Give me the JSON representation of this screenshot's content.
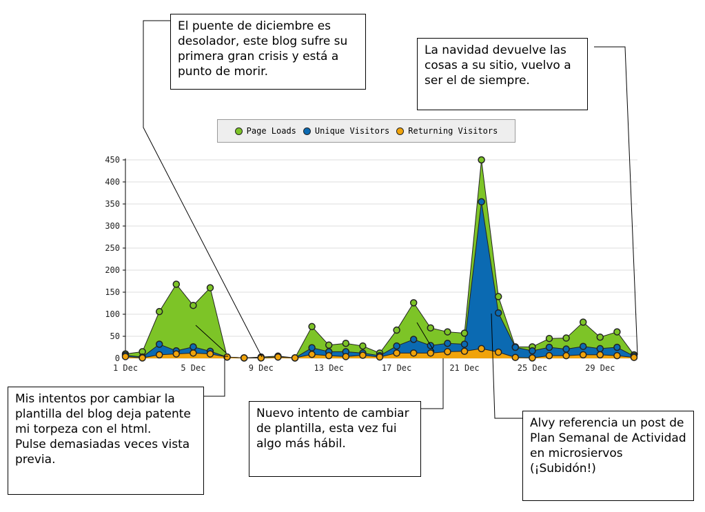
{
  "chart_data": {
    "type": "area",
    "x": [
      "1 Dec",
      "2 Dec",
      "3 Dec",
      "4 Dec",
      "5 Dec",
      "6 Dec",
      "7 Dec",
      "8 Dec",
      "9 Dec",
      "10 Dec",
      "11 Dec",
      "12 Dec",
      "13 Dec",
      "14 Dec",
      "15 Dec",
      "16 Dec",
      "17 Dec",
      "18 Dec",
      "19 Dec",
      "20 Dec",
      "21 Dec",
      "22 Dec",
      "23 Dec",
      "24 Dec",
      "25 Dec",
      "26 Dec",
      "27 Dec",
      "28 Dec",
      "29 Dec",
      "30 Dec",
      "31 Dec"
    ],
    "xticks": [
      "1 Dec",
      "5 Dec",
      "9 Dec",
      "13 Dec",
      "17 Dec",
      "21 Dec",
      "25 Dec",
      "29 Dec"
    ],
    "yticks": [
      0,
      50,
      100,
      150,
      200,
      250,
      300,
      350,
      400,
      450
    ],
    "ylim": [
      0,
      450
    ],
    "grid": true,
    "legend_placement": "top-center",
    "series": [
      {
        "name": "Page Loads",
        "color": "#7dc427",
        "values": [
          10,
          15,
          106,
          168,
          120,
          160,
          3,
          1,
          3,
          5,
          1,
          72,
          30,
          34,
          28,
          12,
          64,
          126,
          69,
          60,
          57,
          450,
          140,
          26,
          26,
          45,
          46,
          82,
          48,
          60,
          8
        ]
      },
      {
        "name": "Unique Visitors",
        "color": "#0b6ab2",
        "values": [
          7,
          3,
          32,
          17,
          26,
          16,
          3,
          1,
          1,
          3,
          1,
          24,
          15,
          15,
          12,
          6,
          28,
          43,
          29,
          34,
          32,
          355,
          103,
          25,
          17,
          25,
          21,
          27,
          22,
          25,
          5
        ]
      },
      {
        "name": "Returning Visitors",
        "color": "#f0a30a",
        "values": [
          4,
          1,
          8,
          10,
          12,
          10,
          3,
          1,
          1,
          3,
          1,
          9,
          6,
          4,
          7,
          3,
          12,
          12,
          12,
          15,
          16,
          22,
          14,
          2,
          1,
          6,
          6,
          8,
          8,
          6,
          2
        ]
      }
    ]
  },
  "annotations": [
    {
      "text": "El puente de diciembre es desolador, este blog sufre su primera gran crisis y está a punto de morir."
    },
    {
      "text": "La navidad devuelve las cosas a su sitio, vuelvo a ser el de siempre."
    },
    {
      "text": "Mis intentos por cambiar la plantilla del blog deja patente mi torpeza con el html.\nPulse demasiadas veces vista previa."
    },
    {
      "text": "Nuevo intento de cambiar de plantilla, esta vez fui algo más hábil."
    },
    {
      "text": "Alvy referencia un post de Plan Semanal de Actividad en microsiervos (¡Subidón!)"
    }
  ]
}
